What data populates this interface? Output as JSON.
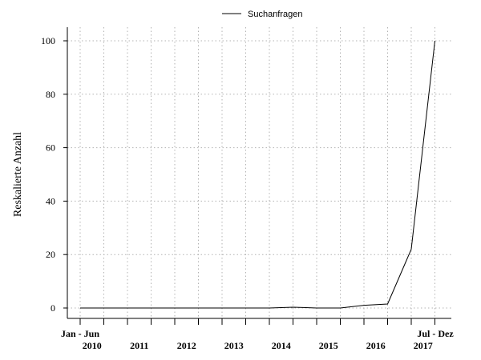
{
  "chart_data": {
    "type": "line",
    "title": "",
    "ylabel": "Reskalierte Anzahl",
    "xlabel": "",
    "legend": {
      "position": "top-center",
      "entries": [
        "Suchanfragen"
      ]
    },
    "grid": true,
    "ylim": [
      0,
      100
    ],
    "yticks": [
      0,
      20,
      40,
      60,
      80,
      100
    ],
    "x": [
      "2010 Jan - Jun",
      "2010 Jul - Dez",
      "2011 Jan - Jun",
      "2011 Jul - Dez",
      "2012 Jan - Jun",
      "2012 Jul - Dez",
      "2013 Jan - Jun",
      "2013 Jul - Dez",
      "2014 Jan - Jun",
      "2014 Jul - Dez",
      "2015 Jan - Jun",
      "2015 Jul - Dez",
      "2016 Jan - Jun",
      "2016 Jul - Dez",
      "2017 Jan - Jun",
      "2017 Jul - Dez"
    ],
    "series": [
      {
        "name": "Suchanfragen",
        "color": "#000000",
        "values": [
          0,
          0,
          0,
          0,
          0,
          0,
          0,
          0,
          0,
          0.3,
          0,
          0,
          1,
          1.5,
          22,
          100
        ]
      }
    ],
    "x_axis_labels": {
      "first_half": "Jan - Jun",
      "last_half": "Jul - Dez",
      "years": [
        "2010",
        "2011",
        "2012",
        "2013",
        "2014",
        "2015",
        "2016",
        "2017"
      ]
    }
  }
}
